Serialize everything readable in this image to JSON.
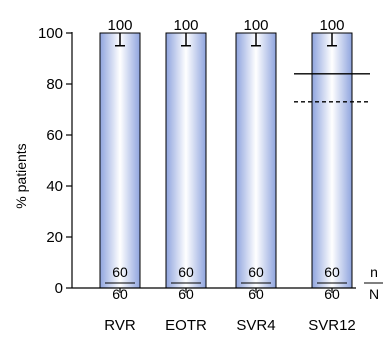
{
  "chart_data": {
    "type": "bar",
    "categories": [
      "RVR",
      "EOTR",
      "SVR4",
      "SVR12"
    ],
    "values": [
      100,
      100,
      100,
      100
    ],
    "value_labels": [
      "100",
      "100",
      "100",
      "100"
    ],
    "error_lower": [
      95,
      95,
      95,
      95
    ],
    "n_values": [
      "60",
      "60",
      "60",
      "60"
    ],
    "N_values": [
      "60",
      "60",
      "60",
      "60"
    ],
    "n_key": "n",
    "N_key": "N",
    "ylabel": "% patients",
    "ylim": [
      0,
      100
    ],
    "yticks": [
      0,
      20,
      40,
      60,
      80,
      100
    ],
    "ytick_labels": [
      "0",
      "20",
      "40",
      "60",
      "80",
      "100"
    ],
    "reference_lines": [
      {
        "value": 84,
        "style": "solid",
        "category": "SVR12"
      },
      {
        "value": 73,
        "style": "dashed",
        "category": "SVR12"
      }
    ],
    "bar_color": "#8fa4de",
    "bar_highlight": "#ffffff"
  }
}
